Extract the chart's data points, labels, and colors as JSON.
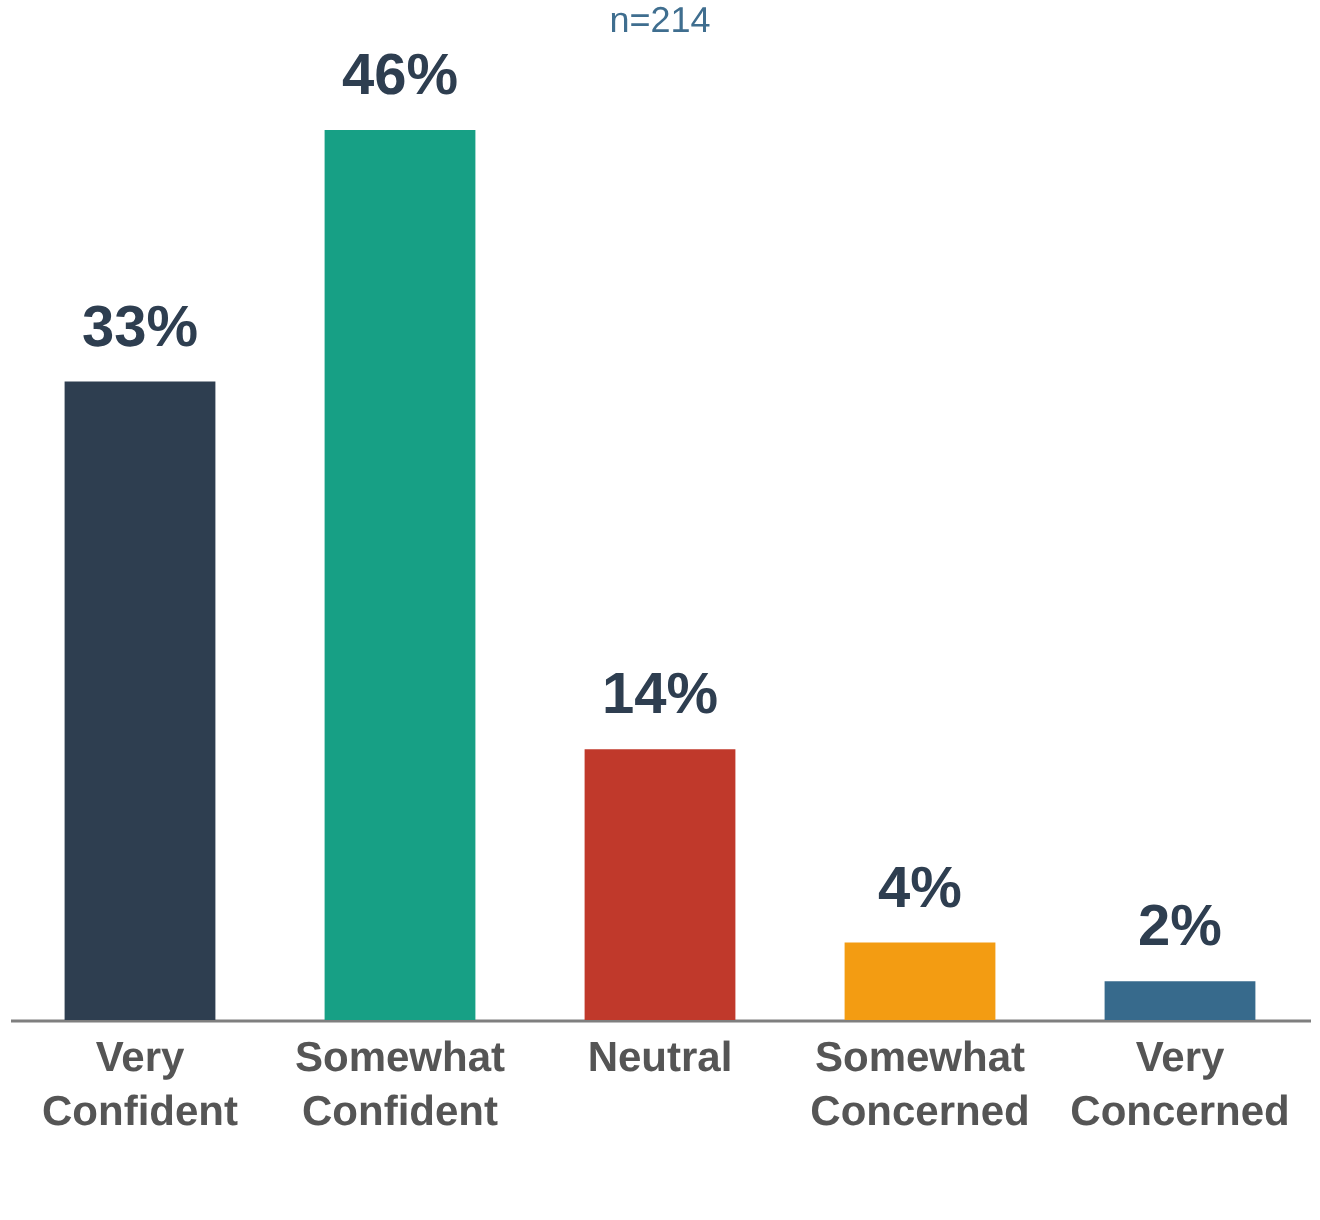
{
  "chart_data": {
    "type": "bar",
    "subtitle": "n=214",
    "categories": [
      "Very Confident",
      "Somewhat Confident",
      "Neutral",
      "Somewhat Concerned",
      "Very Concerned"
    ],
    "values": [
      33,
      46,
      14,
      4,
      2
    ],
    "value_labels": [
      "33%",
      "46%",
      "14%",
      "4%",
      "2%"
    ],
    "colors": [
      "#2e3e50",
      "#17a085",
      "#c0392b",
      "#f39c12",
      "#376a8c"
    ],
    "grid": false,
    "legend": false
  }
}
